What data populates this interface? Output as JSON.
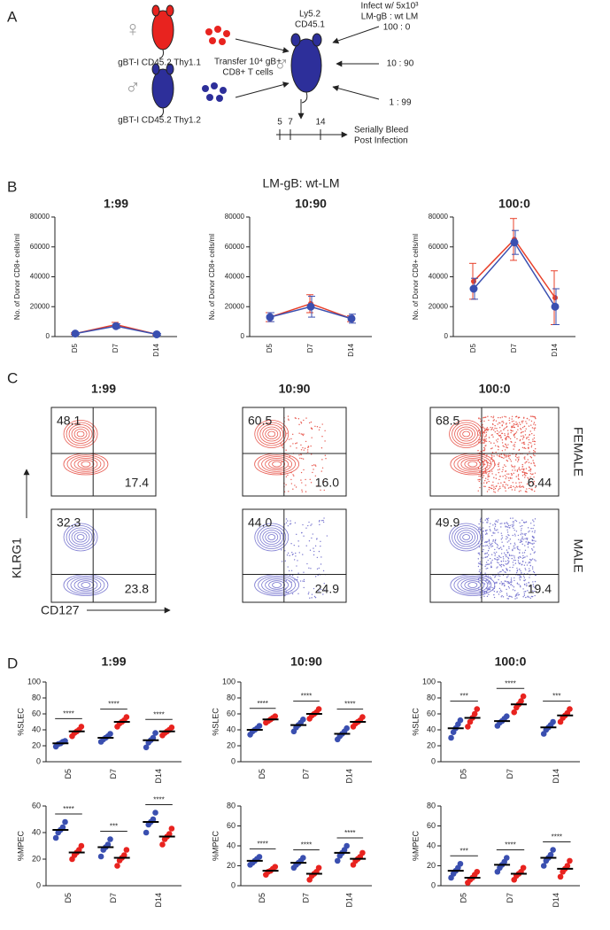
{
  "panel_a": {
    "label": "A",
    "female_symbol": "♀",
    "male_symbol": "♂",
    "recipient_symbol": "♂",
    "donor_female": "gBT-I CD45.2 Thy1.1",
    "donor_male": "gBT-I CD45.2 Thy1.2",
    "transfer": [
      "Transfer 10⁴ gB+",
      "CD8+ T cells"
    ],
    "recipient": [
      "Ly5.2",
      "CD45.1"
    ],
    "infect": [
      "Infect w/ 5x10³",
      "LM-gB  : wt LM"
    ],
    "ratios": [
      "100 : 0",
      "10 : 90",
      "1 : 99"
    ],
    "timeline": [
      "5",
      "7",
      "14"
    ],
    "bleed": [
      "Serially Bleed",
      "Post Infection"
    ]
  },
  "panel_b": {
    "label": "B",
    "title": "LM-gB: wt-LM"
  },
  "panel_c": {
    "label": "C",
    "columns": [
      "1:99",
      "10:90",
      "100:0"
    ],
    "rows": [
      "FEMALE",
      "MALE"
    ],
    "y_axis": "KLRG1",
    "x_axis": "CD127",
    "quadrants": [
      [
        [
          "48.1",
          "17.4"
        ],
        [
          "60.5",
          "16.0"
        ],
        [
          "68.5",
          "6.44"
        ]
      ],
      [
        [
          "32.3",
          "23.8"
        ],
        [
          "44.0",
          "24.9"
        ],
        [
          "49.9",
          "19.4"
        ]
      ]
    ]
  },
  "panel_d": {
    "label": "D"
  },
  "chart_data": [
    {
      "type": "line",
      "title": "1:99",
      "y_label": "No. of Donor CD8+ cells/ml",
      "categories": [
        "D5",
        "D7",
        "D14"
      ],
      "ylim": [
        0,
        80000
      ],
      "yticks": [
        0,
        20000,
        40000,
        60000,
        80000
      ],
      "series": [
        {
          "color": "#e8402a",
          "values": [
            2000,
            8000,
            1500
          ],
          "errors": [
            500,
            1500,
            500
          ]
        },
        {
          "color": "#3a4fb0",
          "values": [
            2000,
            7000,
            1500
          ],
          "errors": [
            500,
            1500,
            500
          ]
        }
      ]
    },
    {
      "type": "line",
      "title": "10:90",
      "y_label": "No. of Donor CD8+ cells/ml",
      "categories": [
        "D5",
        "D7",
        "D14"
      ],
      "ylim": [
        0,
        80000
      ],
      "yticks": [
        0,
        20000,
        40000,
        60000,
        80000
      ],
      "series": [
        {
          "color": "#e8402a",
          "values": [
            13000,
            22000,
            12000
          ],
          "errors": [
            3000,
            6000,
            2000
          ]
        },
        {
          "color": "#3a4fb0",
          "values": [
            13000,
            20000,
            12000
          ],
          "errors": [
            3000,
            7000,
            3000
          ]
        }
      ]
    },
    {
      "type": "line",
      "title": "100:0",
      "y_label": "No. of Donor CD8+ cells/ml",
      "categories": [
        "D5",
        "D7",
        "D14"
      ],
      "ylim": [
        0,
        80000
      ],
      "yticks": [
        0,
        20000,
        40000,
        60000,
        80000
      ],
      "series": [
        {
          "color": "#e8402a",
          "values": [
            37000,
            65000,
            26000
          ],
          "errors": [
            12000,
            14000,
            18000
          ]
        },
        {
          "color": "#3a4fb0",
          "values": [
            32000,
            63000,
            20000
          ],
          "errors": [
            7000,
            8000,
            12000
          ]
        }
      ]
    },
    {
      "type": "strip",
      "title": "1:99",
      "y_label": "%SLEC",
      "categories": [
        "D5",
        "D7",
        "D14"
      ],
      "ylim": [
        0,
        100
      ],
      "yticks": [
        0,
        20,
        40,
        60,
        80,
        100
      ],
      "significance": [
        "****",
        "****",
        "****"
      ],
      "series": [
        {
          "color": "#3a4fb0",
          "values": [
            23,
            30,
            27
          ],
          "points": [
            [
              19,
              22,
              23,
              25,
              26
            ],
            [
              25,
              28,
              30,
              32,
              35
            ],
            [
              18,
              24,
              27,
              30,
              36
            ]
          ]
        },
        {
          "color": "#e8231f",
          "values": [
            38,
            50,
            38
          ],
          "points": [
            [
              32,
              36,
              38,
              40,
              44
            ],
            [
              44,
              48,
              50,
              52,
              56
            ],
            [
              33,
              36,
              38,
              40,
              43
            ]
          ]
        }
      ]
    },
    {
      "type": "strip",
      "title": "10:90",
      "y_label": "%SLEC",
      "categories": [
        "D5",
        "D7",
        "D14"
      ],
      "ylim": [
        0,
        100
      ],
      "yticks": [
        0,
        20,
        40,
        60,
        80,
        100
      ],
      "significance": [
        "****",
        "****",
        "****"
      ],
      "series": [
        {
          "color": "#3a4fb0",
          "values": [
            40,
            46,
            35
          ],
          "points": [
            [
              34,
              38,
              40,
              42,
              45
            ],
            [
              38,
              43,
              46,
              49,
              53
            ],
            [
              28,
              32,
              35,
              38,
              42
            ]
          ]
        },
        {
          "color": "#e8231f",
          "values": [
            53,
            60,
            50
          ],
          "points": [
            [
              49,
              51,
              53,
              55,
              57
            ],
            [
              54,
              58,
              60,
              62,
              66
            ],
            [
              44,
              48,
              50,
              52,
              56
            ]
          ]
        }
      ]
    },
    {
      "type": "strip",
      "title": "100:0",
      "y_label": "%SLEC",
      "categories": [
        "D5",
        "D7",
        "D14"
      ],
      "ylim": [
        0,
        100
      ],
      "yticks": [
        0,
        20,
        40,
        60,
        80,
        100
      ],
      "significance": [
        "***",
        "****",
        "***"
      ],
      "series": [
        {
          "color": "#3a4fb0",
          "values": [
            42,
            51,
            43
          ],
          "points": [
            [
              30,
              37,
              42,
              47,
              52
            ],
            [
              45,
              49,
              51,
              54,
              57
            ],
            [
              35,
              40,
              43,
              46,
              50
            ]
          ]
        },
        {
          "color": "#e8231f",
          "values": [
            55,
            72,
            58
          ],
          "points": [
            [
              44,
              50,
              55,
              60,
              66
            ],
            [
              62,
              68,
              72,
              76,
              82
            ],
            [
              50,
              55,
              58,
              61,
              66
            ]
          ]
        }
      ]
    },
    {
      "type": "strip",
      "y_label": "%MPEC",
      "categories": [
        "D5",
        "D7",
        "D14"
      ],
      "ylim": [
        0,
        60
      ],
      "yticks": [
        0,
        20,
        40,
        60
      ],
      "significance": [
        "****",
        "***",
        "****"
      ],
      "series": [
        {
          "color": "#3a4fb0",
          "values": [
            42,
            29,
            48
          ],
          "points": [
            [
              36,
              40,
              42,
              44,
              48
            ],
            [
              22,
              27,
              29,
              31,
              35
            ],
            [
              40,
              46,
              48,
              50,
              55
            ]
          ]
        },
        {
          "color": "#e8231f",
          "values": [
            25,
            21,
            37
          ],
          "points": [
            [
              20,
              23,
              25,
              27,
              30
            ],
            [
              15,
              19,
              21,
              23,
              27
            ],
            [
              31,
              35,
              37,
              39,
              43
            ]
          ]
        }
      ]
    },
    {
      "type": "strip",
      "y_label": "%MPEC",
      "categories": [
        "D5",
        "D7",
        "D14"
      ],
      "ylim": [
        0,
        80
      ],
      "yticks": [
        0,
        20,
        40,
        60,
        80
      ],
      "significance": [
        "****",
        "****",
        "****"
      ],
      "series": [
        {
          "color": "#3a4fb0",
          "values": [
            25,
            23,
            33
          ],
          "points": [
            [
              21,
              23,
              25,
              27,
              29
            ],
            [
              18,
              21,
              23,
              25,
              28
            ],
            [
              25,
              30,
              33,
              36,
              40
            ]
          ]
        },
        {
          "color": "#e8231f",
          "values": [
            15,
            12,
            27
          ],
          "points": [
            [
              11,
              14,
              15,
              17,
              19
            ],
            [
              6,
              10,
              12,
              14,
              18
            ],
            [
              21,
              25,
              27,
              29,
              33
            ]
          ]
        }
      ]
    },
    {
      "type": "strip",
      "y_label": "%MPEC",
      "categories": [
        "D5",
        "D7",
        "D14"
      ],
      "ylim": [
        0,
        80
      ],
      "yticks": [
        0,
        20,
        40,
        60,
        80
      ],
      "significance": [
        "***",
        "****",
        "****"
      ],
      "series": [
        {
          "color": "#3a4fb0",
          "values": [
            15,
            21,
            28
          ],
          "points": [
            [
              8,
              12,
              15,
              18,
              22
            ],
            [
              14,
              18,
              21,
              24,
              28
            ],
            [
              20,
              25,
              28,
              31,
              36
            ]
          ]
        },
        {
          "color": "#e8231f",
          "values": [
            8,
            12,
            17
          ],
          "points": [
            [
              3,
              6,
              8,
              11,
              14
            ],
            [
              6,
              10,
              12,
              14,
              18
            ],
            [
              9,
              14,
              17,
              20,
              25
            ]
          ]
        }
      ]
    }
  ]
}
